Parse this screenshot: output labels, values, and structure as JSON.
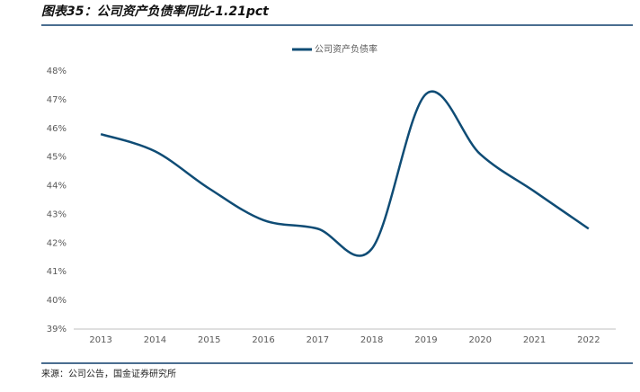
{
  "chart_data": {
    "type": "line",
    "title": "图表35：公司资产负债率同比-1.21pct",
    "source": "来源：公司公告，国金证券研究所",
    "categories": [
      "2013",
      "2014",
      "2015",
      "2016",
      "2017",
      "2018",
      "2019",
      "2020",
      "2021",
      "2022"
    ],
    "series": [
      {
        "name": "公司资产负债率",
        "color": "#0f4c75",
        "values": [
          45.8,
          45.2,
          43.9,
          42.8,
          42.5,
          41.8,
          47.2,
          45.1,
          43.8,
          42.5
        ]
      }
    ],
    "ylim": [
      39,
      48
    ],
    "yticks": [
      {
        "value": 39,
        "label": "39%"
      },
      {
        "value": 40,
        "label": "40%"
      },
      {
        "value": 41,
        "label": "41%"
      },
      {
        "value": 42,
        "label": "42%"
      },
      {
        "value": 43,
        "label": "43%"
      },
      {
        "value": 44,
        "label": "44%"
      },
      {
        "value": 45,
        "label": "45%"
      },
      {
        "value": 46,
        "label": "46%"
      },
      {
        "value": 47,
        "label": "47%"
      },
      {
        "value": 48,
        "label": "48%"
      }
    ],
    "grid": false,
    "smooth": true,
    "legend": "top"
  }
}
